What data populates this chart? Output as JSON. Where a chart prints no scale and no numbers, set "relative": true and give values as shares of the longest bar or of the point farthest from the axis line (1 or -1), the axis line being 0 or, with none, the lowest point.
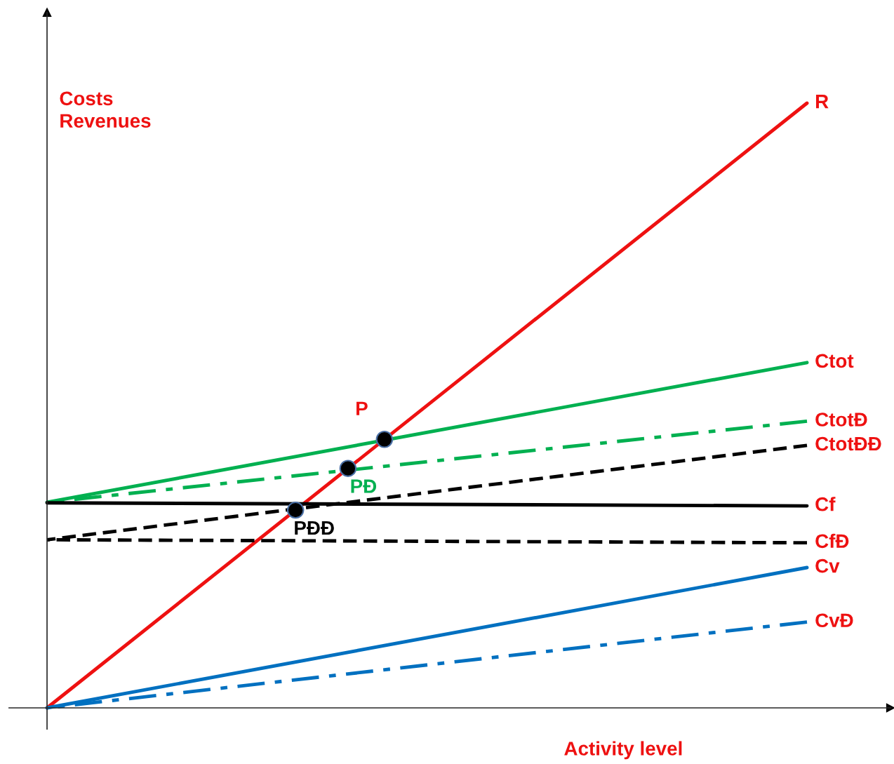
{
  "chart_data": {
    "type": "line",
    "relative": true,
    "xlabel": "Activity level",
    "ylabel": "Costs\nRevenues",
    "legend": false,
    "categories": [
      null,
      null
    ],
    "series": [
      {
        "name": "R",
        "color": "#ee1111",
        "values": [
          0,
          1.0
        ],
        "line_style": "solid"
      },
      {
        "name": "Ctot",
        "color": "#00b050",
        "values": [
          0.34,
          0.571
        ],
        "line_style": "solid"
      },
      {
        "name": "CtotĐ",
        "color": "#00b050",
        "values": [
          0.34,
          0.474
        ],
        "line_style": "dashdot"
      },
      {
        "name": "CtotĐĐ",
        "color": "#000000",
        "values": [
          0.278,
          0.434
        ],
        "line_style": "dashed"
      },
      {
        "name": "Cf",
        "color": "#000000",
        "values": [
          0.339,
          0.334
        ],
        "line_style": "solid"
      },
      {
        "name": "CfĐ",
        "color": "#000000",
        "values": [
          0.278,
          0.273
        ],
        "line_style": "dashed"
      },
      {
        "name": "Cv",
        "color": "#0070c0",
        "values": [
          0,
          0.232
        ],
        "line_style": "solid"
      },
      {
        "name": "CvĐ",
        "color": "#0070c0",
        "values": [
          0,
          0.142
        ],
        "line_style": "dashdot"
      }
    ],
    "annotations": [
      {
        "text": "P",
        "y": 0.444
      },
      {
        "text": "PĐ",
        "y": 0.396
      },
      {
        "text": "PĐĐ",
        "y": 0.327
      }
    ]
  }
}
